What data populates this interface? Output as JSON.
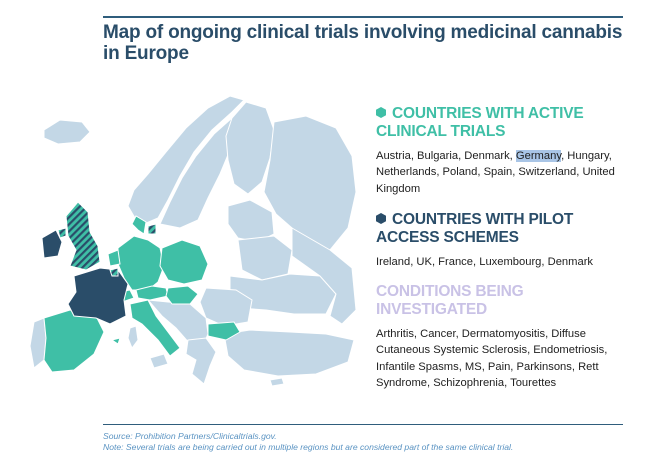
{
  "title": "Map of ongoing clinical trials involving medicinal cannabis in Europe",
  "colors": {
    "active_trials": "#3fbfa6",
    "pilot_access": "#2a4d69",
    "conditions_heading": "#c9c2e6",
    "other_countries": "#c3d7e6",
    "rule": "#2f5d7c",
    "footnote": "#5a93c2"
  },
  "active_trials": {
    "icon": "hexagon-icon",
    "heading": "COUNTRIES WITH ACTIVE CLINICAL TRIALS",
    "before_highlight": "Austria, Bulgaria, Denmark, ",
    "highlight": "Germany",
    "after_highlight": ", Hungary, Netherlands, Poland, Spain, Switzerland, United Kingdom"
  },
  "pilot_access": {
    "icon": "hexagon-icon",
    "heading": "COUNTRIES WITH PILOT ACCESS SCHEMES",
    "body": "Ireland, UK, France, Luxembourg, Denmark"
  },
  "conditions": {
    "heading": "CONDITIONS BEING INVESTIGATED",
    "body": "Arthritis, Cancer, Dermatomyositis, Diffuse Cutaneous Systemic Sclerosis, Endometriosis, Infantile Spasms, MS, Pain, Parkinsons, Rett Syndrome, Schizophrenia, Tourettes"
  },
  "footnotes": {
    "source": "Source: Prohibition Partners/Clinicaltrials.gov.",
    "note": "Note: Several trials are being carried out in multiple regions but are considered part of the same clinical trial."
  }
}
